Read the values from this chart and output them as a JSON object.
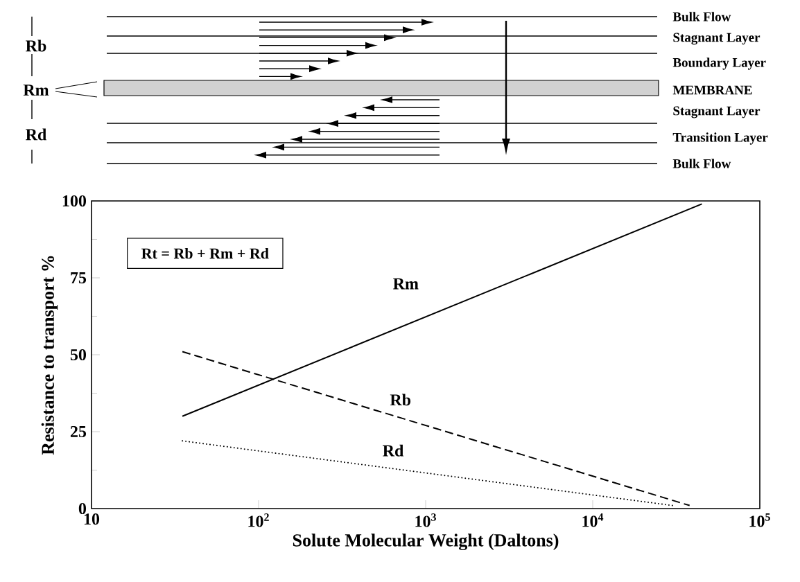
{
  "chart_data": {
    "type": "line",
    "xlabel": "Solute Molecular Weight (Daltons)",
    "ylabel": "Resistance to transport %",
    "log": "x",
    "xlim": [
      10,
      100000
    ],
    "ylim": [
      0,
      100
    ],
    "xticks": [
      10,
      {
        "value": 100,
        "label": "10$^{2}$"
      },
      {
        "value": 1000,
        "label": "10$^{3}$"
      },
      {
        "value": 10000,
        "label": "10$^{4}$"
      },
      {
        "value": 100000,
        "label": "10$^{5}$"
      }
    ],
    "yticks": [
      0,
      25,
      50,
      75,
      100
    ],
    "series": [
      {
        "name": "Rm",
        "color": "#000000",
        "line_style": "solid",
        "x": [
          35,
          45000
        ],
        "values": [
          30,
          99
        ]
      },
      {
        "name": "Rb",
        "color": "#000000",
        "line_style": "dashed",
        "x": [
          35,
          38000
        ],
        "values": [
          51,
          1
        ]
      },
      {
        "name": "Rd",
        "color": "#000000",
        "line_style": "dotted",
        "x": [
          35,
          30000
        ],
        "values": [
          22,
          1
        ]
      }
    ],
    "annotations": [
      "Rt = Rb + Rm + Rd",
      "Bulk Flow",
      "Stagnant Layer",
      "Boundary Layer",
      "MEMBRANE",
      "Stagnant Layer",
      "Transition Layer",
      "Bulk Flow",
      "Rb",
      "Rm",
      "Rd"
    ]
  }
}
